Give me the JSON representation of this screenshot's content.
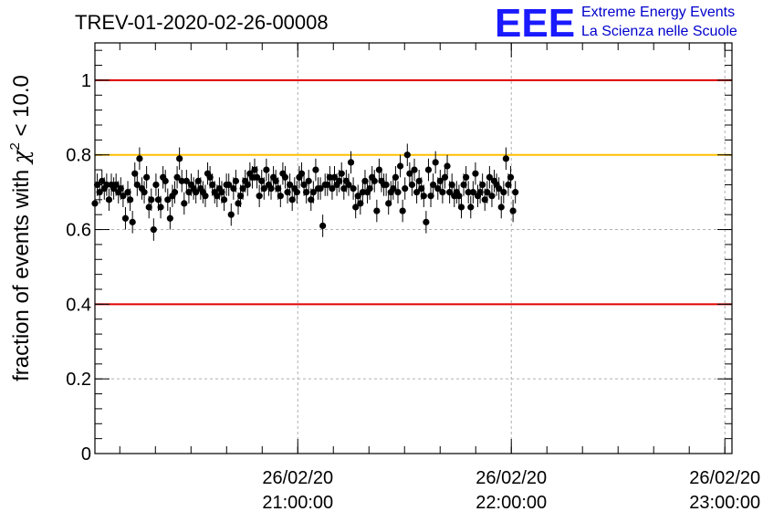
{
  "chart_data": {
    "type": "scatter",
    "title": "TREV-01-2020-02-26-00008",
    "xlabel": "",
    "ylabel": "fraction of events with χ² < 10.0",
    "ylabel_parts": {
      "pre": "fraction of events with ",
      "sym": "χ",
      "exp": "2",
      "post": " < 10.0"
    },
    "xlim": [
      "20:03:00",
      "23:02:00"
    ],
    "ylim": [
      0,
      1.1
    ],
    "yticks": [
      {
        "value": 0,
        "label": "0"
      },
      {
        "value": 0.2,
        "label": "0.2"
      },
      {
        "value": 0.4,
        "label": "0.4"
      },
      {
        "value": 0.6,
        "label": "0.6"
      },
      {
        "value": 0.8,
        "label": "0.8"
      },
      {
        "value": 1,
        "label": "1"
      }
    ],
    "xticks": [
      {
        "time": "21:00:00",
        "date": "26/02/20",
        "label_time": "21:00:00"
      },
      {
        "time": "22:00:00",
        "date": "26/02/20",
        "label_time": "22:00:00"
      },
      {
        "time": "23:00:00",
        "date": "26/02/20",
        "label_time": "23:00:00"
      }
    ],
    "grid": true,
    "reference_lines": [
      {
        "y": 1.0,
        "color": "#e00000"
      },
      {
        "y": 0.4,
        "color": "#e00000"
      },
      {
        "y": 0.8,
        "color": "#ffbf00"
      }
    ],
    "marker_color": "#000000",
    "series": [
      {
        "x_start": "20:03:00",
        "x_step_minutes": 0.66,
        "error": 0.03,
        "y": [
          0.67,
          0.72,
          0.7,
          0.73,
          0.71,
          0.72,
          0.68,
          0.72,
          0.71,
          0.72,
          0.7,
          0.71,
          0.69,
          0.63,
          0.7,
          0.68,
          0.62,
          0.75,
          0.72,
          0.79,
          0.71,
          0.7,
          0.74,
          0.66,
          0.68,
          0.6,
          0.72,
          0.68,
          0.66,
          0.74,
          0.73,
          0.68,
          0.63,
          0.69,
          0.7,
          0.74,
          0.79,
          0.73,
          0.67,
          0.73,
          0.7,
          0.72,
          0.71,
          0.7,
          0.73,
          0.71,
          0.7,
          0.69,
          0.75,
          0.74,
          0.72,
          0.7,
          0.69,
          0.71,
          0.7,
          0.68,
          0.72,
          0.72,
          0.64,
          0.71,
          0.73,
          0.67,
          0.69,
          0.71,
          0.73,
          0.72,
          0.75,
          0.74,
          0.76,
          0.74,
          0.69,
          0.73,
          0.71,
          0.76,
          0.72,
          0.71,
          0.74,
          0.73,
          0.71,
          0.69,
          0.75,
          0.74,
          0.7,
          0.72,
          0.68,
          0.71,
          0.7,
          0.74,
          0.75,
          0.72,
          0.7,
          0.73,
          0.68,
          0.7,
          0.76,
          0.71,
          0.71,
          0.61,
          0.72,
          0.72,
          0.74,
          0.71,
          0.74,
          0.72,
          0.73,
          0.75,
          0.71,
          0.73,
          0.72,
          0.78,
          0.71,
          0.66,
          0.69,
          0.67,
          0.7,
          0.73,
          0.7,
          0.71,
          0.74,
          0.73,
          0.65,
          0.76,
          0.73,
          0.72,
          0.72,
          0.67,
          0.7,
          0.71,
          0.74,
          0.7,
          0.77,
          0.65,
          0.71,
          0.8,
          0.75,
          0.72,
          0.76,
          0.7,
          0.73,
          0.71,
          0.69,
          0.62,
          0.76,
          0.69,
          0.72,
          0.78,
          0.71,
          0.73,
          0.7,
          0.74,
          0.77,
          0.7,
          0.72,
          0.69,
          0.7,
          0.69,
          0.66,
          0.72,
          0.74,
          0.7,
          0.66,
          0.7,
          0.75,
          0.69,
          0.7,
          0.72,
          0.68,
          0.7,
          0.74,
          0.69,
          0.73,
          0.72,
          0.71,
          0.66,
          0.7,
          0.79,
          0.72,
          0.74,
          0.65,
          0.7
        ]
      }
    ]
  },
  "logo": {
    "letters": "EEE",
    "line1": "Extreme Energy Events",
    "line2": "La Scienza nelle Scuole",
    "color": "#1a1aff"
  }
}
